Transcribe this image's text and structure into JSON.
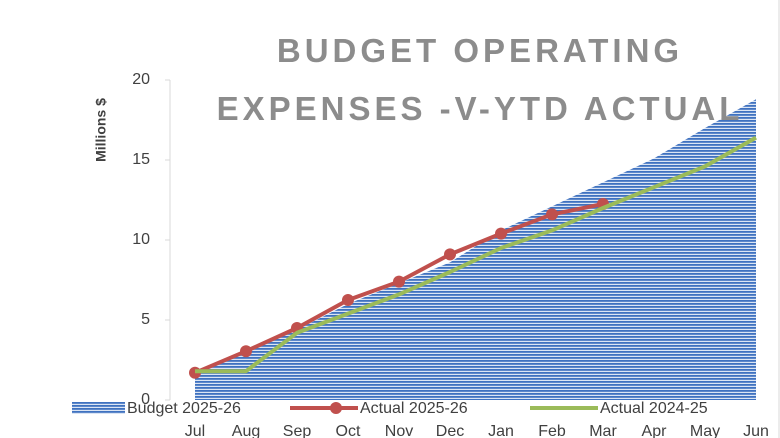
{
  "chart_data": {
    "type": "area-line",
    "title": "BUDGET OPERATING\nEXPENSES -V-YTD ACTUAL",
    "y_label": "Millions $",
    "categories": [
      "Jul",
      "Aug",
      "Sep",
      "Oct",
      "Nov",
      "Dec",
      "Jan",
      "Feb",
      "Mar",
      "Apr",
      "May",
      "Jun"
    ],
    "series": [
      {
        "name": "Budget 2025-26",
        "kind": "area",
        "color": "#4a7bc4",
        "values": [
          1.7,
          3.0,
          4.4,
          6.0,
          7.3,
          8.6,
          10.6,
          12.1,
          13.6,
          15.1,
          17.0,
          18.8
        ]
      },
      {
        "name": "Actual 2025-26",
        "kind": "line",
        "marker": true,
        "color": "#c0504d",
        "values": [
          1.7,
          3.05,
          4.5,
          6.25,
          7.4,
          9.1,
          10.4,
          11.6,
          12.25,
          null,
          null,
          null
        ]
      },
      {
        "name": "Actual 2024-25",
        "kind": "line",
        "marker": false,
        "color": "#9bbb59",
        "values": [
          1.8,
          1.8,
          4.2,
          5.4,
          6.6,
          8.0,
          9.5,
          10.6,
          12.0,
          13.3,
          14.6,
          16.4
        ]
      }
    ],
    "ylim": [
      0,
      20
    ],
    "yticks": [
      0,
      5,
      10,
      15,
      20
    ],
    "legend": "bottom"
  }
}
